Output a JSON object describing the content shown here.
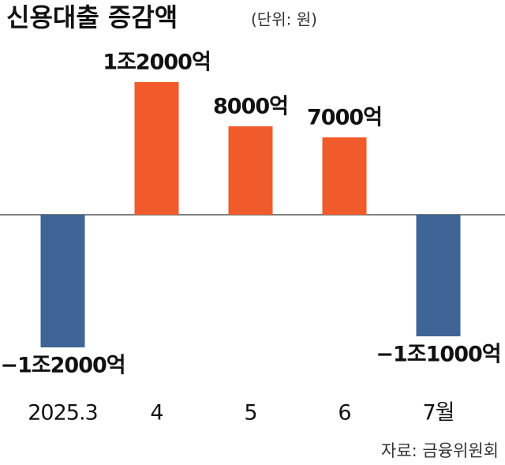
{
  "chart_data": {
    "type": "bar",
    "title": "신용대출 증감액",
    "subtitle": "(단위: 원)",
    "categories": [
      "2025.3",
      "4",
      "5",
      "6",
      "7월"
    ],
    "values": [
      -1200000000000,
      1200000000000,
      800000000000,
      700000000000,
      -1100000000000
    ],
    "value_labels": [
      "−1조2000억",
      "1조2000억",
      "8000억",
      "7000억",
      "−1조1000억"
    ],
    "positive_color": "#f15a2b",
    "negative_color": "#3e6595",
    "source": "자료: 금융위원회"
  }
}
